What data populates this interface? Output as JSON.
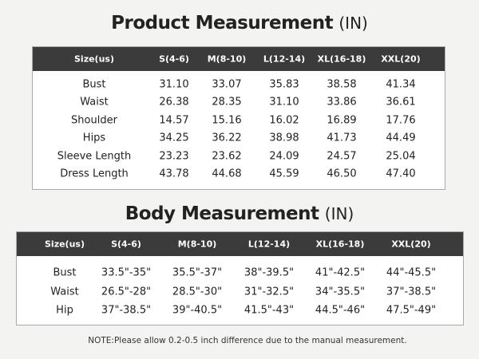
{
  "product": {
    "title": "Product Measurement",
    "unit": "(IN)",
    "header": [
      "Size(us)",
      "S(4-6)",
      "M(8-10)",
      "L(12-14)",
      "XL(16-18)",
      "XXL(20)"
    ],
    "rows": [
      [
        "Bust",
        "31.10",
        "33.07",
        "35.83",
        "38.58",
        "41.34"
      ],
      [
        "Waist",
        "26.38",
        "28.35",
        "31.10",
        "33.86",
        "36.61"
      ],
      [
        "Shoulder",
        "14.57",
        "15.16",
        "16.02",
        "16.89",
        "17.76"
      ],
      [
        "Hips",
        "34.25",
        "36.22",
        "38.98",
        "41.73",
        "44.49"
      ],
      [
        "Sleeve Length",
        "23.23",
        "23.62",
        "24.09",
        "24.57",
        "25.04"
      ],
      [
        "Dress Length",
        "43.78",
        "44.68",
        "45.59",
        "46.50",
        "47.40"
      ]
    ]
  },
  "body": {
    "title": "Body Measurement",
    "unit": "(IN)",
    "header": [
      "Size(us)",
      "S(4-6)",
      "M(8-10)",
      "L(12-14)",
      "XL(16-18)",
      "XXL(20)"
    ],
    "rows": [
      [
        "Bust",
        "33.5\"-35\"",
        "35.5\"-37\"",
        "38\"-39.5\"",
        "41\"-42.5\"",
        "44\"-45.5\""
      ],
      [
        "Waist",
        "26.5\"-28\"",
        "28.5\"-30\"",
        "31\"-32.5\"",
        "34\"-35.5\"",
        "37\"-38.5\""
      ],
      [
        "Hip",
        "37\"-38.5\"",
        "39\"-40.5\"",
        "41.5\"-43\"",
        "44.5\"-46\"",
        "47.5\"-49\""
      ]
    ]
  },
  "note": "NOTE:Please allow 0.2-0.5 inch difference due to the manual measurement."
}
